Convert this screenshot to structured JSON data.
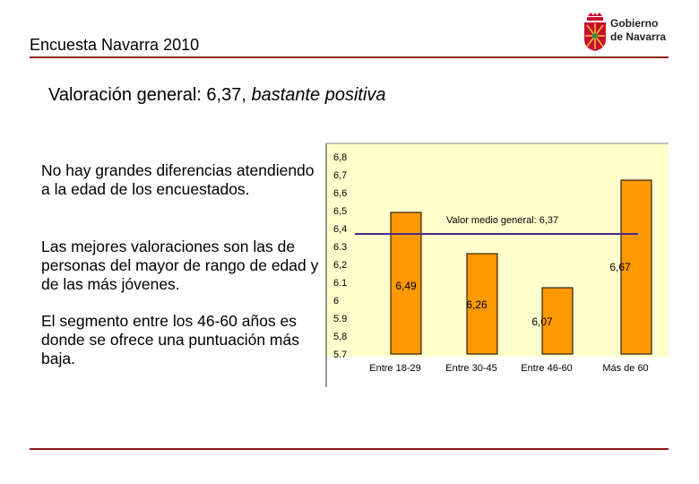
{
  "header": {
    "title": "Encuesta Navarra 2010"
  },
  "logo": {
    "line1": "Gobierno",
    "line2": "de Navarra"
  },
  "subtitle": {
    "prefix": "Valoración general: 6,37,",
    "emphasis": "bastante positiva"
  },
  "paragraphs": [
    "No hay grandes diferencias atendiendo a la edad de los encuestados.",
    "Las mejores valoraciones son las de personas del mayor de rango de edad y de las más jóvenes.",
    "El segmento entre los 46-60 años es donde se ofrece una puntuación más baja."
  ],
  "colors": {
    "bar": "#ff9900",
    "plot_bg": "#ffffcc",
    "mean_line": "#4b2a8a",
    "rule": "#8b1a1a"
  },
  "chart_data": {
    "type": "bar",
    "categories": [
      "Entre 18-29",
      "Entre 30-45",
      "Entre 46-60",
      "Más de 60"
    ],
    "values": [
      6.49,
      6.26,
      6.07,
      6.67
    ],
    "value_labels": [
      "6,49",
      "6,26",
      "6,07",
      "6,67"
    ],
    "ylim": [
      5.7,
      6.8
    ],
    "yticks": [
      6.8,
      6.7,
      6.6,
      6.5,
      6.4,
      6.3,
      6.2,
      6.1,
      6.0,
      5.9,
      5.8,
      5.7
    ],
    "ytick_labels": [
      "6,8",
      "6,7",
      "6,6",
      "6,5",
      "6,4",
      "6.3",
      "6,2",
      "6.1",
      "6",
      "5.9",
      "5,8",
      "5.7"
    ],
    "reference_line": {
      "value": 6.37,
      "label": "Valor medio general: 6,37"
    },
    "grid": false,
    "legend": "none"
  }
}
